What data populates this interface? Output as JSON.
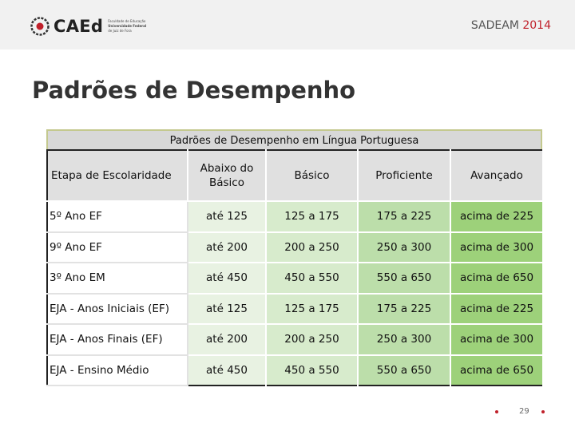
{
  "header": {
    "logo_text": "CAEd",
    "logo_sub": [
      "Faculdade de Educação",
      "Universidade Federal",
      "de Juiz de Fora"
    ],
    "program": "SADEAM",
    "year": "2014",
    "accent": "#c0202a"
  },
  "page": {
    "title": "Padrões de Desempenho"
  },
  "table": {
    "caption": "Padrões de Desempenho em Língua Portuguesa",
    "headers": [
      "Etapa de Escolaridade",
      "Abaixo do Básico",
      "Básico",
      "Proficiente",
      "Avançado"
    ],
    "rows": [
      [
        "5º Ano EF",
        "até 125",
        "125 a 175",
        "175 a 225",
        "acima de 225"
      ],
      [
        "9º Ano EF",
        "até 200",
        "200 a 250",
        "250 a 300",
        "acima de 300"
      ],
      [
        "3º Ano EM",
        "até 450",
        "450 a 550",
        "550 a 650",
        "acima de 650"
      ],
      [
        "EJA - Anos Iniciais (EF)",
        "até 125",
        "125 a 175",
        "175 a 225",
        "acima de 225"
      ],
      [
        "EJA - Anos Finais (EF)",
        "até 200",
        "200 a 250",
        "250 a 300",
        "acima de 300"
      ],
      [
        "EJA - Ensino Médio",
        "até 450",
        "450 a 550",
        "550 a 650",
        "acima de 650"
      ]
    ],
    "level_colors": [
      "#e8f2e2",
      "#d7ebcc",
      "#bcdeaa",
      "#9dd17a"
    ]
  },
  "footer": {
    "page_number": "29"
  }
}
